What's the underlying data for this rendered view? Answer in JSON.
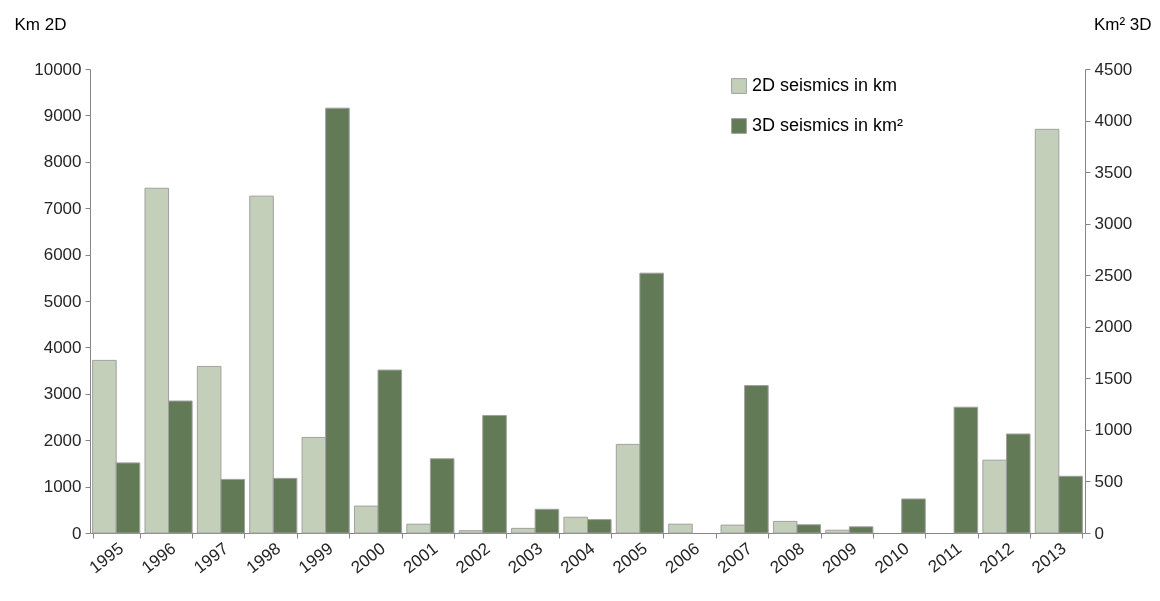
{
  "chart_data": {
    "type": "bar",
    "categories": [
      "1995",
      "1996",
      "1997",
      "1998",
      "1999",
      "2000",
      "2001",
      "2002",
      "2003",
      "2004",
      "2005",
      "2006",
      "2007",
      "2008",
      "2009",
      "2010",
      "2011",
      "2012",
      "2013"
    ],
    "series": [
      {
        "name": "2D seismics in km",
        "color": "#c3cfb9",
        "values": [
          3720,
          7430,
          3590,
          7260,
          2060,
          580,
          190,
          50,
          100,
          340,
          1910,
          190,
          170,
          250,
          60,
          null,
          null,
          1570,
          8700
        ]
      },
      {
        "name": "3D seismics in km²",
        "color": "#627a55",
        "axis": "y2",
        "values": [
          680,
          1280,
          520,
          530,
          4120,
          1580,
          720,
          1140,
          230,
          130,
          2520,
          null,
          1430,
          80,
          60,
          330,
          1220,
          960,
          550
        ]
      }
    ],
    "ylabel": "Km 2D",
    "y2label": "Km² 3D",
    "ylim": [
      0,
      10000
    ],
    "yticks": [
      0,
      1000,
      2000,
      3000,
      4000,
      5000,
      6000,
      7000,
      8000,
      9000,
      10000
    ],
    "y2lim": [
      0,
      4500
    ],
    "y2ticks": [
      0,
      500,
      1000,
      1500,
      2000,
      2500,
      3000,
      3500,
      4000,
      4500
    ],
    "grid": false,
    "legend": "top right"
  }
}
